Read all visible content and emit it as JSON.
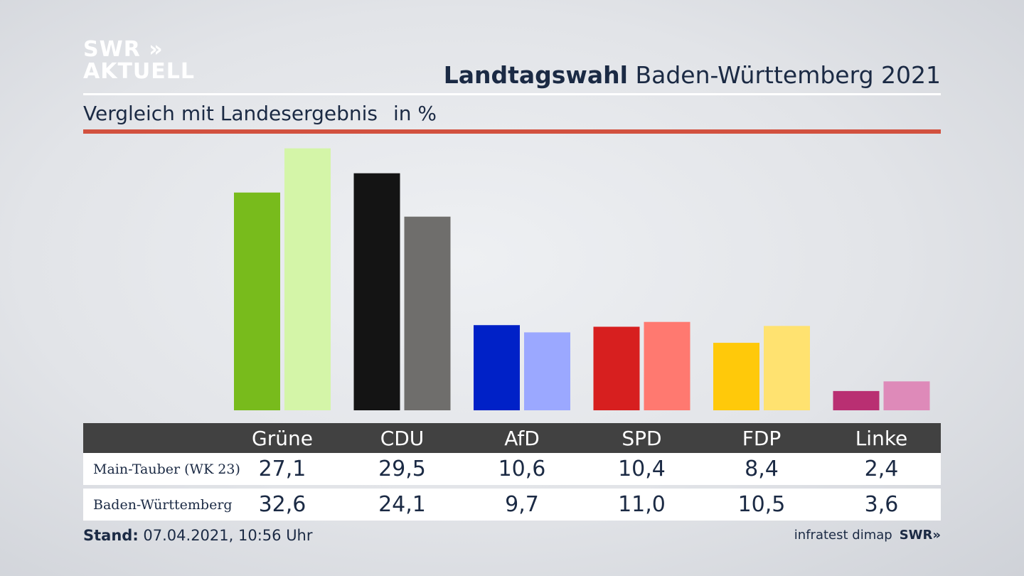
{
  "brand": {
    "line1": "SWR »",
    "line2": "AKTUELL"
  },
  "header": {
    "title_bold": "Landtagswahl",
    "title_rest": "Baden-Württemberg 2021"
  },
  "subheader": {
    "text": "Vergleich mit Landesergebnis",
    "unit": "in %"
  },
  "colors": {
    "accent_rule": "#d2513f",
    "table_header": "#414141"
  },
  "chart_data": {
    "type": "bar",
    "categories": [
      "Grüne",
      "CDU",
      "AfD",
      "SPD",
      "FDP",
      "Linke"
    ],
    "series": [
      {
        "name": "Main-Tauber (WK 23)",
        "values": [
          27.1,
          29.5,
          10.6,
          10.4,
          8.4,
          2.4
        ],
        "colors": [
          "#78bb1c",
          "#141414",
          "#0021c7",
          "#d71f1f",
          "#ffc90a",
          "#b92f72"
        ]
      },
      {
        "name": "Baden-Württemberg",
        "values": [
          32.6,
          24.1,
          9.7,
          11.0,
          10.5,
          3.6
        ],
        "colors": [
          "#d4f5a8",
          "#6f6e6c",
          "#9ba8ff",
          "#ff7970",
          "#ffe270",
          "#de8ab9"
        ]
      }
    ],
    "value_labels": [
      [
        "27,1",
        "29,5",
        "10,6",
        "10,4",
        "8,4",
        "2,4"
      ],
      [
        "32,6",
        "24,1",
        "9,7",
        "11,0",
        "10,5",
        "3,6"
      ]
    ]
  },
  "footer": {
    "stand_label": "Stand:",
    "stand_value": "07.04.2021, 10:56 Uhr",
    "source": "infratest dimap",
    "source_brand": "SWR»"
  }
}
